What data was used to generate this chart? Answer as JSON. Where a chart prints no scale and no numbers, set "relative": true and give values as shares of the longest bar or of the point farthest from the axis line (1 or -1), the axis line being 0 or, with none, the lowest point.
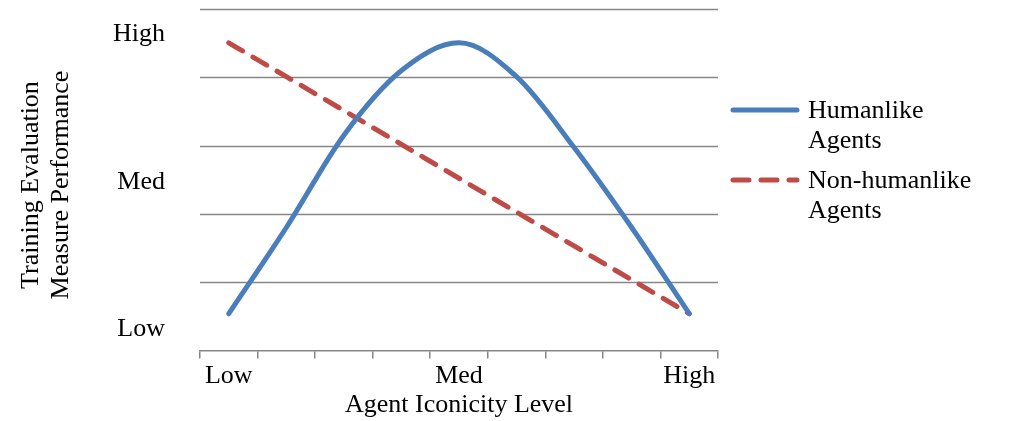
{
  "chart_data": {
    "type": "line",
    "xlabel": "Agent Iconicity Level",
    "ylabel": "Training Evaluation Measure Performance",
    "categories": [
      "Low",
      null,
      null,
      null,
      "Med",
      null,
      null,
      null,
      "High"
    ],
    "relative": true,
    "annotations": [
      "High",
      "Med",
      "Low"
    ],
    "grid": "y",
    "legend": "right",
    "marker": "none",
    "series": [
      {
        "name": "Humanlike Agents",
        "color": "#4a7ebb",
        "line_style": "solid",
        "values": [
          0.12,
          0.4,
          0.7,
          0.91,
          1,
          0.89,
          0.66,
          0.4,
          0.12
        ]
      },
      {
        "name": "Non-humanlike Agents",
        "color": "#be4b48",
        "line_style": "dashed",
        "values": [
          1,
          0.89,
          0.78,
          0.67,
          0.56,
          0.45,
          0.34,
          0.23,
          0.12
        ]
      }
    ]
  }
}
